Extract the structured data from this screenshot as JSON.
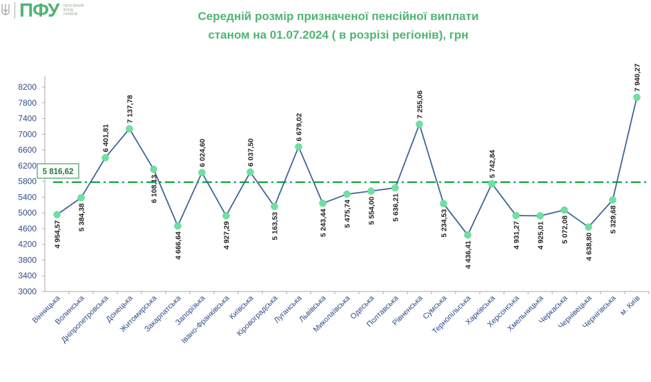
{
  "logo": {
    "mark": "ПФУ",
    "subtitle": "Пенсійний фонд України"
  },
  "chart_data": {
    "type": "line",
    "title": "Середній розмір призначеної пенсійної виплати",
    "subtitle": "станом на 01.07.2024 ( в розрізі регіонів), грн",
    "categories": [
      "Вінницька",
      "Волинська",
      "Дніпропетровська",
      "Донецька",
      "Житомирська",
      "Закарпатська",
      "Запорізька",
      "Івано-Франківська",
      "Київська",
      "Кіровоградська",
      "Луганська",
      "Львівська",
      "Миколаївська",
      "Одеська",
      "Полтавська",
      "Рівненська",
      "Сумська",
      "Тернопільська",
      "Харківська",
      "Херсонська",
      "Хмельницька",
      "Черкаська",
      "Чернівецька",
      "Чернігівська",
      "м. Київ"
    ],
    "values": [
      4954.57,
      5384.38,
      6401.81,
      7137.78,
      6108.13,
      4666.64,
      6024.6,
      4927.29,
      6037.5,
      5163.53,
      6679.02,
      5243.44,
      5475.74,
      5554.0,
      5636.21,
      7255.06,
      5234.53,
      4436.41,
      5742.84,
      4931.27,
      4925.01,
      5072.08,
      4638.8,
      5329.68,
      7940.27
    ],
    "data_labels": [
      "4 954,57",
      "5 384,38",
      "6 401,81",
      "7 137,78",
      "6 108,13",
      "4 666,64",
      "6 024,60",
      "4 927,29",
      "6 037,50",
      "5 163,53",
      "6 679,02",
      "5 243,44",
      "5 475,74",
      "5 554,00",
      "5 636,21",
      "7 255,06",
      "5 234,53",
      "4 436,41",
      "5 742,84",
      "4 931,27",
      "4 925,01",
      "5 072,08",
      "4 638,80",
      "5 329,68",
      "7 940,27"
    ],
    "label_position": [
      "below",
      "below",
      "above",
      "above",
      "below",
      "below",
      "above",
      "below",
      "above",
      "below",
      "above",
      "below",
      "below",
      "below",
      "below",
      "above",
      "below",
      "below",
      "above",
      "below",
      "below",
      "below",
      "below",
      "below",
      "above"
    ],
    "average": {
      "value": 5816.62,
      "label": "5 816,62",
      "color": "#1fae4a"
    },
    "ylim": [
      3000,
      8200
    ],
    "yticks": [
      "3000",
      "3400",
      "3800",
      "4200",
      "4600",
      "5000",
      "5400",
      "5800",
      "6200",
      "6600",
      "7000",
      "7400",
      "7800",
      "8200"
    ],
    "grid": false,
    "line_color": "#3d6592",
    "marker_color": "#6fe0a0",
    "title_color": "#4fb573",
    "tick_label_color": "#2f4b8a"
  }
}
